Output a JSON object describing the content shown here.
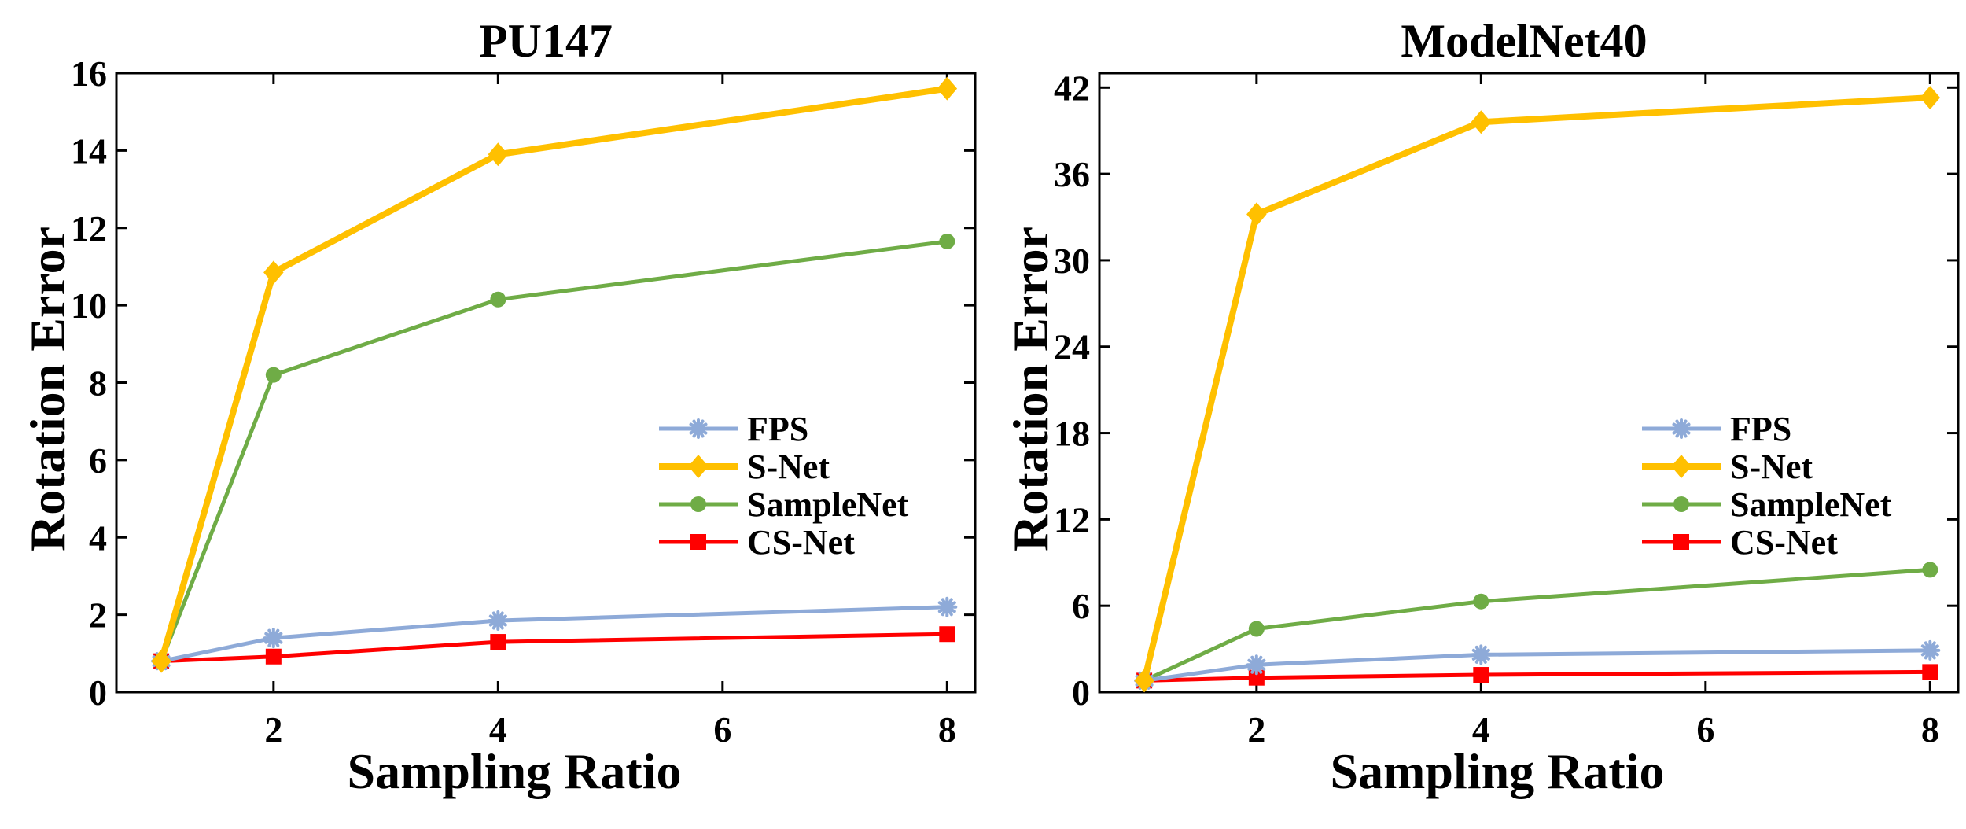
{
  "chart_data": [
    {
      "type": "line",
      "title": "PU147",
      "xlabel": "Sampling Ratio",
      "ylabel": "Rotation Error",
      "xlim": [
        0.6,
        8.25
      ],
      "ylim": [
        0,
        16
      ],
      "xticks": [
        2,
        4,
        6,
        8
      ],
      "yticks": [
        0,
        2,
        4,
        6,
        8,
        10,
        12,
        14,
        16
      ],
      "legend_position": "center-right",
      "x": [
        1,
        2,
        4,
        8
      ],
      "series": [
        {
          "name": "FPS",
          "color": "#8eaad8",
          "marker": "star",
          "values": [
            0.8,
            1.4,
            1.85,
            2.2
          ]
        },
        {
          "name": "S-Net",
          "color": "#ffc000",
          "marker": "diamond",
          "values": [
            0.8,
            10.85,
            13.9,
            15.6
          ]
        },
        {
          "name": "SampleNet",
          "color": "#6fac46",
          "marker": "circle",
          "values": [
            0.8,
            8.2,
            10.15,
            11.65
          ]
        },
        {
          "name": "CS-Net",
          "color": "#ff0000",
          "marker": "square",
          "values": [
            0.8,
            0.92,
            1.3,
            1.5
          ]
        }
      ]
    },
    {
      "type": "line",
      "title": "ModelNet40",
      "xlabel": "Sampling Ratio",
      "ylabel": "Rotation Error",
      "xlim": [
        0.6,
        8.25
      ],
      "ylim": [
        0,
        43
      ],
      "xticks": [
        2,
        4,
        6,
        8
      ],
      "yticks": [
        0,
        6,
        12,
        18,
        24,
        30,
        36,
        42
      ],
      "legend_position": "center-right",
      "x": [
        1,
        2,
        4,
        8
      ],
      "series": [
        {
          "name": "FPS",
          "color": "#8eaad8",
          "marker": "star",
          "values": [
            0.8,
            1.9,
            2.6,
            2.9
          ]
        },
        {
          "name": "S-Net",
          "color": "#ffc000",
          "marker": "diamond",
          "values": [
            0.8,
            33.2,
            39.6,
            41.3
          ]
        },
        {
          "name": "SampleNet",
          "color": "#6fac46",
          "marker": "circle",
          "values": [
            0.8,
            4.4,
            6.3,
            8.5
          ]
        },
        {
          "name": "CS-Net",
          "color": "#ff0000",
          "marker": "square",
          "values": [
            0.8,
            1.0,
            1.2,
            1.4
          ]
        }
      ]
    }
  ]
}
